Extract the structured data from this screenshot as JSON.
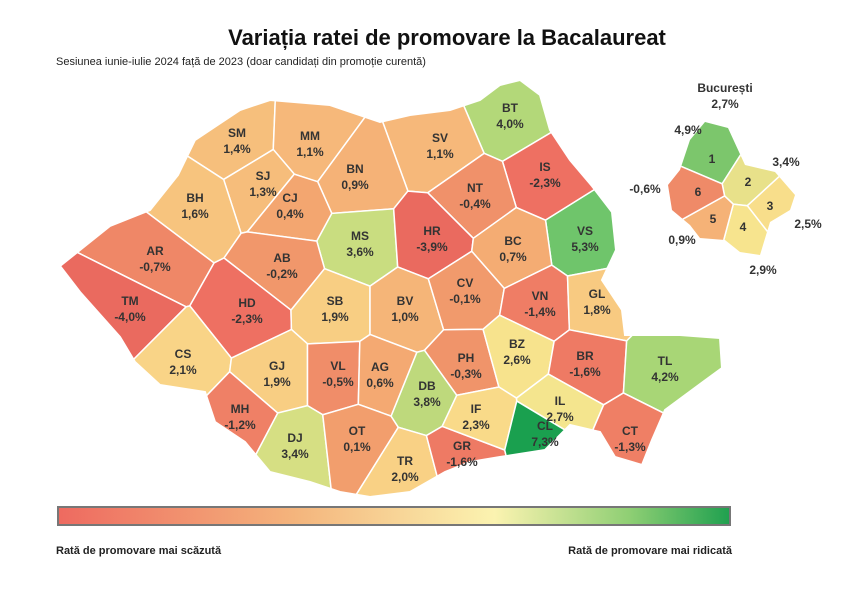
{
  "header": {
    "title": "Variația ratei de promovare la Bacalaureat",
    "subtitle": "Sesiunea iunie-iulie 2024 față de 2023 (doar candidați din promoție curentă)"
  },
  "counties": [
    {
      "code": "SM",
      "label": "1,4%",
      "color": "#f6bf7c"
    },
    {
      "code": "MM",
      "label": "1,1%",
      "color": "#f6b87a"
    },
    {
      "code": "BT",
      "label": "4,0%",
      "color": "#b3d879"
    },
    {
      "code": "SV",
      "label": "1,1%",
      "color": "#f6b87a"
    },
    {
      "code": "BN",
      "label": "0,9%",
      "color": "#f5b277"
    },
    {
      "code": "SJ",
      "label": "1,3%",
      "color": "#f6bd7b"
    },
    {
      "code": "IS",
      "label": "-2,3%",
      "color": "#ee7062"
    },
    {
      "code": "BH",
      "label": "1,6%",
      "color": "#f7c47e"
    },
    {
      "code": "CJ",
      "label": "0,4%",
      "color": "#f3a670"
    },
    {
      "code": "NT",
      "label": "-0,4%",
      "color": "#f0916a"
    },
    {
      "code": "MS",
      "label": "3,6%",
      "color": "#c9dd80"
    },
    {
      "code": "HR",
      "label": "-3,9%",
      "color": "#ea6a5f"
    },
    {
      "code": "VS",
      "label": "5,3%",
      "color": "#6fc56b"
    },
    {
      "code": "BC",
      "label": "0,7%",
      "color": "#f4ac73"
    },
    {
      "code": "AR",
      "label": "-0,7%",
      "color": "#ef8767"
    },
    {
      "code": "AB",
      "label": "-0,2%",
      "color": "#f1976b"
    },
    {
      "code": "TM",
      "label": "-4,0%",
      "color": "#ea6a5f"
    },
    {
      "code": "HD",
      "label": "-2,3%",
      "color": "#ee7062"
    },
    {
      "code": "SB",
      "label": "1,9%",
      "color": "#f8ce83"
    },
    {
      "code": "BV",
      "label": "1,0%",
      "color": "#f5b578"
    },
    {
      "code": "CV",
      "label": "-0,1%",
      "color": "#f19a6c"
    },
    {
      "code": "VN",
      "label": "-1,4%",
      "color": "#ef7d65"
    },
    {
      "code": "GL",
      "label": "1,8%",
      "color": "#f8ca81"
    },
    {
      "code": "CS",
      "label": "2,1%",
      "color": "#f9d487"
    },
    {
      "code": "GJ",
      "label": "1,9%",
      "color": "#f8ce83"
    },
    {
      "code": "VL",
      "label": "-0,5%",
      "color": "#f08d69"
    },
    {
      "code": "AG",
      "label": "0,6%",
      "color": "#f4a972"
    },
    {
      "code": "PH",
      "label": "-0,3%",
      "color": "#f0946a"
    },
    {
      "code": "BZ",
      "label": "2,6%",
      "color": "#f7e38d"
    },
    {
      "code": "BR",
      "label": "-1,6%",
      "color": "#ee7a64"
    },
    {
      "code": "TL",
      "label": "4,2%",
      "color": "#a8d676"
    },
    {
      "code": "MH",
      "label": "-1,2%",
      "color": "#ef8066"
    },
    {
      "code": "DJ",
      "label": "3,4%",
      "color": "#d6df83"
    },
    {
      "code": "OT",
      "label": "0,1%",
      "color": "#f29e6d"
    },
    {
      "code": "DB",
      "label": "3,8%",
      "color": "#bed97c"
    },
    {
      "code": "TR",
      "label": "2,0%",
      "color": "#f9d185"
    },
    {
      "code": "GR",
      "label": "-1,6%",
      "color": "#ee7a64"
    },
    {
      "code": "IF",
      "label": "2,3%",
      "color": "#f9da89"
    },
    {
      "code": "IL",
      "label": "2,7%",
      "color": "#f4e58e"
    },
    {
      "code": "CL",
      "label": "7,3%",
      "color": "#1aa04f"
    },
    {
      "code": "CT",
      "label": "-1,3%",
      "color": "#ef7f65"
    }
  ],
  "bucharest": {
    "title": "București",
    "label": "2,7%",
    "sectors": [
      {
        "number": "1",
        "label": "4,9%",
        "color": "#7cc66c"
      },
      {
        "number": "2",
        "label": "3,4%",
        "color": "#e8e18a"
      },
      {
        "number": "3",
        "label": "2,5%",
        "color": "#f8de8b"
      },
      {
        "number": "4",
        "label": "2,9%",
        "color": "#f7e48e"
      },
      {
        "number": "5",
        "label": "0,9%",
        "color": "#f5b277"
      },
      {
        "number": "6",
        "label": "-0,6%",
        "color": "#ef8a68"
      }
    ]
  },
  "legend": {
    "low": "Rată de promovare mai scăzută",
    "high": "Rată de promovare mai ridicată"
  }
}
